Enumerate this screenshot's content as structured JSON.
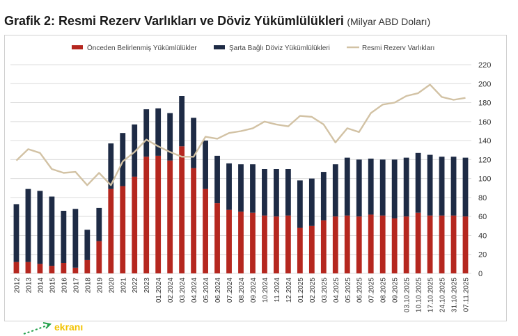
{
  "title": "Grafik 2: Resmi Rezerv Varlıkları ve Döviz Yükümlülükleri",
  "subtitle": "(Milyar ABD Doları)",
  "logo_text": "ekranı",
  "colors": {
    "red": "#b5271f",
    "navy": "#1e2b45",
    "line": "#d2c2a4",
    "grid": "#dcdcdc"
  },
  "chart_data": {
    "type": "bar",
    "stacked": true,
    "legend_position": "top",
    "ylim": [
      0,
      220
    ],
    "yticks": [
      0,
      20,
      40,
      60,
      80,
      100,
      120,
      140,
      160,
      180,
      200,
      220
    ],
    "categories": [
      "2012",
      "2013",
      "2014",
      "2015",
      "2016",
      "2017",
      "2018",
      "2019",
      "2020",
      "2021",
      "2022",
      "2023",
      "01.2024",
      "02.2024",
      "03.2024",
      "04.2024",
      "05.2024",
      "06.2024",
      "07.2024",
      "08.2024",
      "09.2024",
      "10.2024",
      "11.2024",
      "12.2024",
      "01.2025",
      "02.2025",
      "03.2025",
      "04.2025",
      "05.2025",
      "06.2025",
      "07.2025",
      "08.2025",
      "09.2025",
      "03.10.2025",
      "10.10.2025",
      "17.10.2025",
      "24.10.2025",
      "31.10.2025",
      "07.11.2025"
    ],
    "series": [
      {
        "name": "Önceden Belirlenmiş Yükümlülükler",
        "kind": "bar",
        "color": "#b5271f",
        "values": [
          12,
          12,
          10,
          8,
          11,
          6,
          14,
          34,
          89,
          92,
          102,
          123,
          124,
          119,
          134,
          111,
          89,
          74,
          67,
          65,
          64,
          61,
          60,
          61,
          48,
          50,
          56,
          60,
          61,
          60,
          62,
          61,
          58,
          60,
          64,
          61,
          61,
          61,
          60
        ]
      },
      {
        "name": "Şarta Bağlı Döviz Yükümlülükleri",
        "kind": "bar",
        "color": "#1e2b45",
        "values": [
          61,
          77,
          77,
          73,
          55,
          62,
          32,
          35,
          48,
          56,
          55,
          50,
          50,
          50,
          53,
          53,
          51,
          50,
          49,
          50,
          51,
          49,
          50,
          49,
          50,
          50,
          51,
          55,
          61,
          60,
          59,
          59,
          62,
          62,
          63,
          64,
          62,
          62,
          62
        ]
      },
      {
        "name": "Resmi Rezerv Varlıkları",
        "kind": "line",
        "color": "#d2c2a4",
        "values": [
          119,
          131,
          127,
          110,
          106,
          107,
          93,
          106,
          93,
          118,
          128,
          141,
          134,
          128,
          123,
          123,
          144,
          142,
          148,
          150,
          153,
          160,
          157,
          155,
          166,
          165,
          157,
          138,
          153,
          149,
          169,
          178,
          180,
          187,
          190,
          199,
          186,
          183,
          185
        ]
      }
    ]
  }
}
